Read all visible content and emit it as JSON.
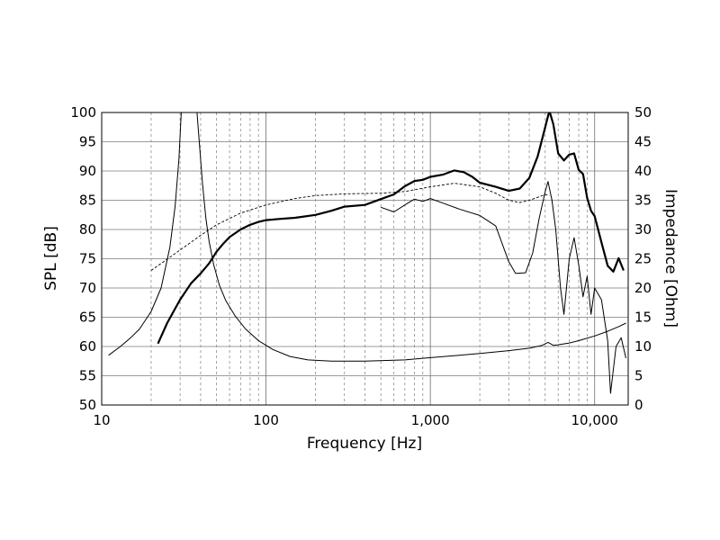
{
  "chart_data": {
    "type": "line",
    "x_scale": "log",
    "grid": true,
    "xlabel": "Frequency [Hz]",
    "ylabel_left": "SPL [dB]",
    "ylabel_right": "Impedance [Ohm]",
    "xlim": [
      10,
      16000
    ],
    "ylim_left": [
      50,
      100
    ],
    "ylim_right": [
      0,
      50
    ],
    "x_tick_labels": [
      "10",
      "100",
      "1,000",
      "10,000"
    ],
    "y_left_tick_labels": [
      "50",
      "55",
      "60",
      "65",
      "70",
      "75",
      "80",
      "85",
      "90",
      "95",
      "100"
    ],
    "y_right_tick_labels": [
      "0",
      "5",
      "10",
      "15",
      "20",
      "25",
      "30",
      "35",
      "40",
      "45",
      "50"
    ],
    "series": [
      {
        "axis": "left",
        "points": [
          [
            22,
            60.5
          ],
          [
            25,
            64
          ],
          [
            30,
            68
          ],
          [
            35,
            70.8
          ],
          [
            40,
            72.5
          ],
          [
            45,
            74.2
          ],
          [
            50,
            76.2
          ],
          [
            55,
            77.6
          ],
          [
            60,
            78.7
          ],
          [
            70,
            80
          ],
          [
            80,
            80.8
          ],
          [
            90,
            81.3
          ],
          [
            100,
            81.6
          ],
          [
            120,
            81.8
          ],
          [
            150,
            82
          ],
          [
            200,
            82.5
          ],
          [
            250,
            83.2
          ],
          [
            300,
            83.9
          ],
          [
            400,
            84.2
          ],
          [
            500,
            85.2
          ],
          [
            600,
            86
          ],
          [
            700,
            87.4
          ],
          [
            800,
            88.3
          ],
          [
            900,
            88.5
          ],
          [
            1000,
            89
          ],
          [
            1200,
            89.4
          ],
          [
            1400,
            90.1
          ],
          [
            1600,
            89.8
          ],
          [
            1800,
            89
          ],
          [
            2000,
            88
          ],
          [
            2500,
            87.3
          ],
          [
            3000,
            86.6
          ],
          [
            3500,
            87
          ],
          [
            4000,
            88.8
          ],
          [
            4500,
            92.5
          ],
          [
            5000,
            97.5
          ],
          [
            5300,
            100.3
          ],
          [
            5600,
            98
          ],
          [
            6000,
            93
          ],
          [
            6500,
            91.8
          ],
          [
            7000,
            92.8
          ],
          [
            7500,
            93
          ],
          [
            8000,
            90.2
          ],
          [
            8500,
            89.5
          ],
          [
            9000,
            85.4
          ],
          [
            9500,
            83.2
          ],
          [
            10000,
            82.3
          ],
          [
            11000,
            77.8
          ],
          [
            12000,
            73.8
          ],
          [
            13000,
            72.8
          ],
          [
            14000,
            75.1
          ],
          [
            15000,
            73
          ]
        ]
      },
      {
        "axis": "left",
        "points": [
          [
            500,
            83.8
          ],
          [
            600,
            83
          ],
          [
            700,
            84.2
          ],
          [
            800,
            85.2
          ],
          [
            900,
            84.8
          ],
          [
            1000,
            85.3
          ],
          [
            1200,
            84.5
          ],
          [
            1500,
            83.5
          ],
          [
            2000,
            82.4
          ],
          [
            2500,
            80.6
          ],
          [
            3000,
            74.5
          ],
          [
            3300,
            72.5
          ],
          [
            3800,
            72.6
          ],
          [
            4200,
            76
          ],
          [
            4600,
            82
          ],
          [
            5000,
            86.5
          ],
          [
            5200,
            88.2
          ],
          [
            5500,
            85
          ],
          [
            5800,
            80
          ],
          [
            6200,
            70
          ],
          [
            6500,
            65.5
          ],
          [
            7000,
            75
          ],
          [
            7500,
            78.6
          ],
          [
            8000,
            74
          ],
          [
            8500,
            68.5
          ],
          [
            9000,
            72
          ],
          [
            9500,
            65.5
          ],
          [
            10000,
            70
          ],
          [
            11000,
            68
          ],
          [
            12000,
            61
          ],
          [
            12500,
            52
          ],
          [
            13500,
            60
          ],
          [
            14500,
            61.5
          ],
          [
            15500,
            58
          ]
        ]
      },
      {
        "axis": "left",
        "dashed": true,
        "points": [
          [
            20,
            73
          ],
          [
            30,
            76.5
          ],
          [
            40,
            79
          ],
          [
            50,
            80.8
          ],
          [
            70,
            82.8
          ],
          [
            100,
            84.2
          ],
          [
            150,
            85.3
          ],
          [
            200,
            85.8
          ],
          [
            300,
            86.1
          ],
          [
            500,
            86.2
          ],
          [
            700,
            86.5
          ],
          [
            1000,
            87.3
          ],
          [
            1400,
            87.9
          ],
          [
            2000,
            87.3
          ],
          [
            2500,
            86.2
          ],
          [
            3000,
            85
          ],
          [
            3500,
            84.6
          ],
          [
            4000,
            85
          ],
          [
            4500,
            85.5
          ],
          [
            5000,
            86
          ],
          [
            5300,
            85.8
          ]
        ]
      },
      {
        "axis": "right",
        "points": [
          [
            11,
            8.5
          ],
          [
            13,
            10
          ],
          [
            15,
            11.5
          ],
          [
            17,
            13
          ],
          [
            20,
            16
          ],
          [
            23,
            20
          ],
          [
            26,
            27
          ],
          [
            28,
            34
          ],
          [
            29.5,
            42
          ],
          [
            30.5,
            50
          ],
          [
            38,
            50
          ],
          [
            39.5,
            44
          ],
          [
            41,
            38
          ],
          [
            43,
            32
          ],
          [
            45,
            28
          ],
          [
            48,
            24
          ],
          [
            52,
            20.5
          ],
          [
            57,
            17.8
          ],
          [
            65,
            15.2
          ],
          [
            75,
            13
          ],
          [
            90,
            11
          ],
          [
            110,
            9.5
          ],
          [
            140,
            8.3
          ],
          [
            180,
            7.7
          ],
          [
            250,
            7.5
          ],
          [
            400,
            7.5
          ],
          [
            700,
            7.7
          ],
          [
            1000,
            8.1
          ],
          [
            1500,
            8.5
          ],
          [
            2000,
            8.8
          ],
          [
            3000,
            9.3
          ],
          [
            4000,
            9.7
          ],
          [
            4800,
            10.2
          ],
          [
            5200,
            10.7
          ],
          [
            5600,
            10.2
          ],
          [
            6000,
            10.3
          ],
          [
            7000,
            10.6
          ],
          [
            8000,
            11
          ],
          [
            10000,
            11.8
          ],
          [
            12000,
            12.6
          ],
          [
            14000,
            13.4
          ],
          [
            15500,
            14
          ]
        ]
      }
    ]
  }
}
